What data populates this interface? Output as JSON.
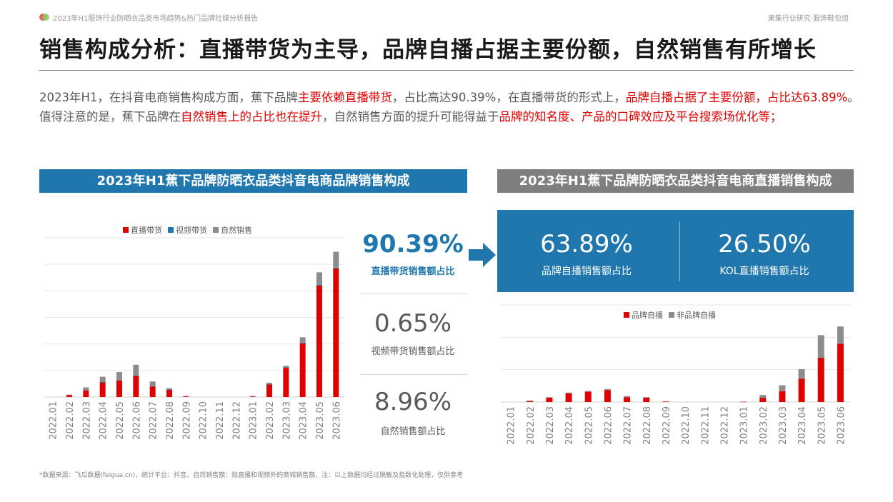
{
  "header": {
    "report_title": "2023年H1服饰行业防晒衣品类市场趋势&热门品牌社媒分析报告",
    "brand": "果集行业研究·服饰鞋包组"
  },
  "main_title": "销售构成分析：直播带货为主导，品牌自播占据主要份额，自然销售有所增长",
  "intro": {
    "p1": "2023年H1，在抖音电商销售构成方面，蕉下品牌",
    "h1": "主要依赖直播带货",
    "p2": "，占比高达90.39%，在直播带货的形式上，",
    "h2": "品牌自播占据了主要份额，占比达63.89%",
    "p3": "。值得注意的是，蕉下品牌在",
    "h3": "自然销售上的占比也在提升",
    "p4": "，自然销售方面的提升可能得益于",
    "h4": "品牌的知名度、产品的口碑效应及平台搜索场优化等；"
  },
  "banner_left": "2023年H1蕉下品牌防晒衣品类抖音电商品牌销售构成",
  "banner_right": "2023年H1蕉下品牌防晒衣品类抖音电商直播销售构成",
  "stats": {
    "live": {
      "value": "90.39%",
      "label": "直播带货销售额占比"
    },
    "video": {
      "value": "0.65%",
      "label": "视频带货销售额占比"
    },
    "natural": {
      "value": "8.96%",
      "label": "自然销售额占比"
    }
  },
  "live_split": {
    "self": {
      "value": "63.89%",
      "label": "品牌自播销售额占比"
    },
    "kol": {
      "value": "26.50%",
      "label": "KOL直播销售额占比"
    }
  },
  "colors": {
    "red": "#e00000",
    "blue": "#1f77ad",
    "gray": "#8c8c8c",
    "accent": "#1f77ad"
  },
  "footnote": "*数据来源：飞瓜数据(feigua.cn)，统计平台：抖音，自然销售额：除直播和视频外的商城销售额，注：以上数据均经过脱敏及指数化处理，仅供参考",
  "chart_data": [
    {
      "type": "bar",
      "stacked": true,
      "legend_position": "top",
      "categories": [
        "2022.01",
        "2022.02",
        "2022.03",
        "2022.04",
        "2022.05",
        "2022.06",
        "2022.07",
        "2022.08",
        "2022.09",
        "2022.10",
        "2022.11",
        "2022.12",
        "2023.01",
        "2023.02",
        "2023.03",
        "2023.04",
        "2023.05",
        "2023.06"
      ],
      "series": [
        {
          "name": "直播带货",
          "color": "#e00000",
          "values": [
            0,
            1.5,
            5,
            11,
            12.5,
            16,
            8,
            5.5,
            0.5,
            0,
            0,
            0,
            0.5,
            9.5,
            22,
            40.5,
            84,
            97
          ]
        },
        {
          "name": "视频带货",
          "color": "#1f77ad",
          "values": [
            0,
            0,
            0.3,
            0.3,
            0.3,
            0.3,
            0.2,
            0.2,
            0,
            0,
            0,
            0,
            0,
            0.3,
            0.5,
            0.5,
            0.5,
            0.5
          ]
        },
        {
          "name": "自然销售",
          "color": "#8c8c8c",
          "values": [
            0,
            0.3,
            2,
            4,
            6,
            8,
            3.5,
            1,
            0.3,
            0,
            0,
            0,
            0.2,
            1,
            1,
            4,
            9.5,
            12
          ]
        }
      ],
      "ylim": [
        0,
        120
      ],
      "grid": true
    },
    {
      "type": "bar",
      "stacked": true,
      "legend_position": "top",
      "categories": [
        "2022.01",
        "2022.02",
        "2022.03",
        "2022.04",
        "2022.05",
        "2022.06",
        "2022.07",
        "2022.08",
        "2022.09",
        "2022.10",
        "2022.11",
        "2022.12",
        "2023.01",
        "2023.02",
        "2023.03",
        "2023.04",
        "2023.05",
        "2023.06"
      ],
      "series": [
        {
          "name": "品牌自播",
          "color": "#e00000",
          "values": [
            0,
            2,
            8,
            16,
            19,
            22,
            9,
            8,
            1,
            0,
            0,
            0,
            0.5,
            8,
            20,
            43,
            82,
            108
          ]
        },
        {
          "name": "非品牌自播",
          "color": "#8c8c8c",
          "values": [
            0,
            0.5,
            1,
            1.5,
            1.5,
            2,
            2,
            1,
            0,
            0,
            0,
            0,
            0,
            5,
            11,
            18,
            42,
            32
          ]
        }
      ],
      "ylim": [
        0,
        180
      ],
      "grid": true
    }
  ]
}
